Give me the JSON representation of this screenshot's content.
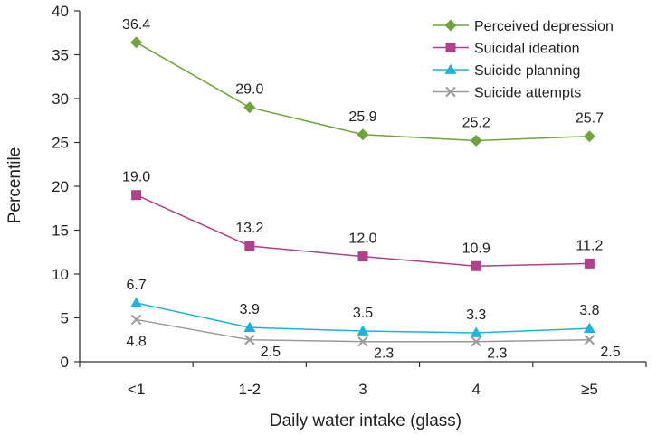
{
  "chart_data": {
    "type": "line",
    "title": "",
    "xlabel": "Daily water intake (glass)",
    "ylabel": "Percentile",
    "categories": [
      "<1",
      "1-2",
      "3",
      "4",
      "≥5"
    ],
    "ylim": [
      0,
      40
    ],
    "yticks": [
      0,
      5,
      10,
      15,
      20,
      25,
      30,
      35,
      40
    ],
    "ytick_labels": [
      "0",
      "5",
      "10",
      "15",
      "20",
      "25",
      "30",
      "35",
      "40"
    ],
    "grid": false,
    "legend_position": "top-right",
    "series": [
      {
        "name": "Perceived depression",
        "values": [
          36.4,
          29.0,
          25.9,
          25.2,
          25.7
        ],
        "labels": [
          "36.4",
          "29.0",
          "25.9",
          "25.2",
          "25.7"
        ],
        "color": "#6fa33b",
        "marker": "diamond",
        "label_side": "above"
      },
      {
        "name": "Suicidal ideation",
        "values": [
          19.0,
          13.2,
          12.0,
          10.9,
          11.2
        ],
        "labels": [
          "19.0",
          "13.2",
          "12.0",
          "10.9",
          "11.2"
        ],
        "color": "#b0408a",
        "marker": "square",
        "label_side": "above"
      },
      {
        "name": "Suicide planning",
        "values": [
          6.7,
          3.9,
          3.5,
          3.3,
          3.8
        ],
        "labels": [
          "6.7",
          "3.9",
          "3.5",
          "3.3",
          "3.8"
        ],
        "color": "#1fb2dc",
        "marker": "triangle",
        "label_side": "above"
      },
      {
        "name": "Suicide attempts",
        "values": [
          4.8,
          2.5,
          2.3,
          2.3,
          2.5
        ],
        "labels": [
          "4.8",
          "2.5",
          "2.3",
          "2.3",
          "2.5"
        ],
        "color": "#9a9a9a",
        "marker": "x",
        "label_side": "below-right"
      }
    ]
  }
}
